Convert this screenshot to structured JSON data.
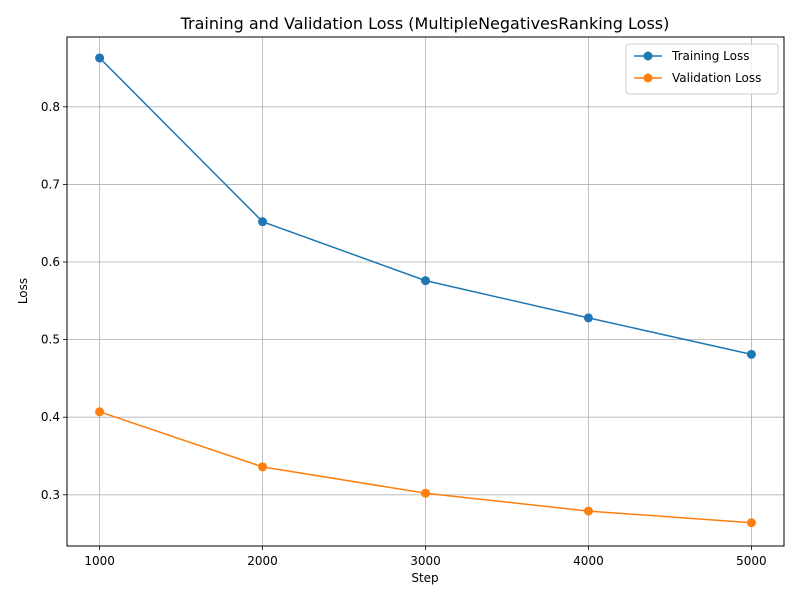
{
  "chart_data": {
    "type": "line",
    "title": "Training and Validation Loss (MultipleNegativesRanking Loss)",
    "xlabel": "Step",
    "ylabel": "Loss",
    "x": [
      1000,
      2000,
      3000,
      4000,
      5000
    ],
    "xticks": [
      "1000",
      "2000",
      "3000",
      "4000",
      "5000"
    ],
    "yticks": [
      "0.3",
      "0.4",
      "0.5",
      "0.6",
      "0.7",
      "0.8"
    ],
    "xlim": [
      800,
      5200
    ],
    "ylim": [
      0.234,
      0.89
    ],
    "grid": true,
    "legend_position": "top-right",
    "series": [
      {
        "name": "Training Loss",
        "color": "#1f77b4",
        "marker": "circle",
        "values": [
          0.863,
          0.652,
          0.576,
          0.528,
          0.481
        ]
      },
      {
        "name": "Validation Loss",
        "color": "#ff7f0e",
        "marker": "circle",
        "values": [
          0.407,
          0.336,
          0.302,
          0.279,
          0.264
        ]
      }
    ]
  }
}
